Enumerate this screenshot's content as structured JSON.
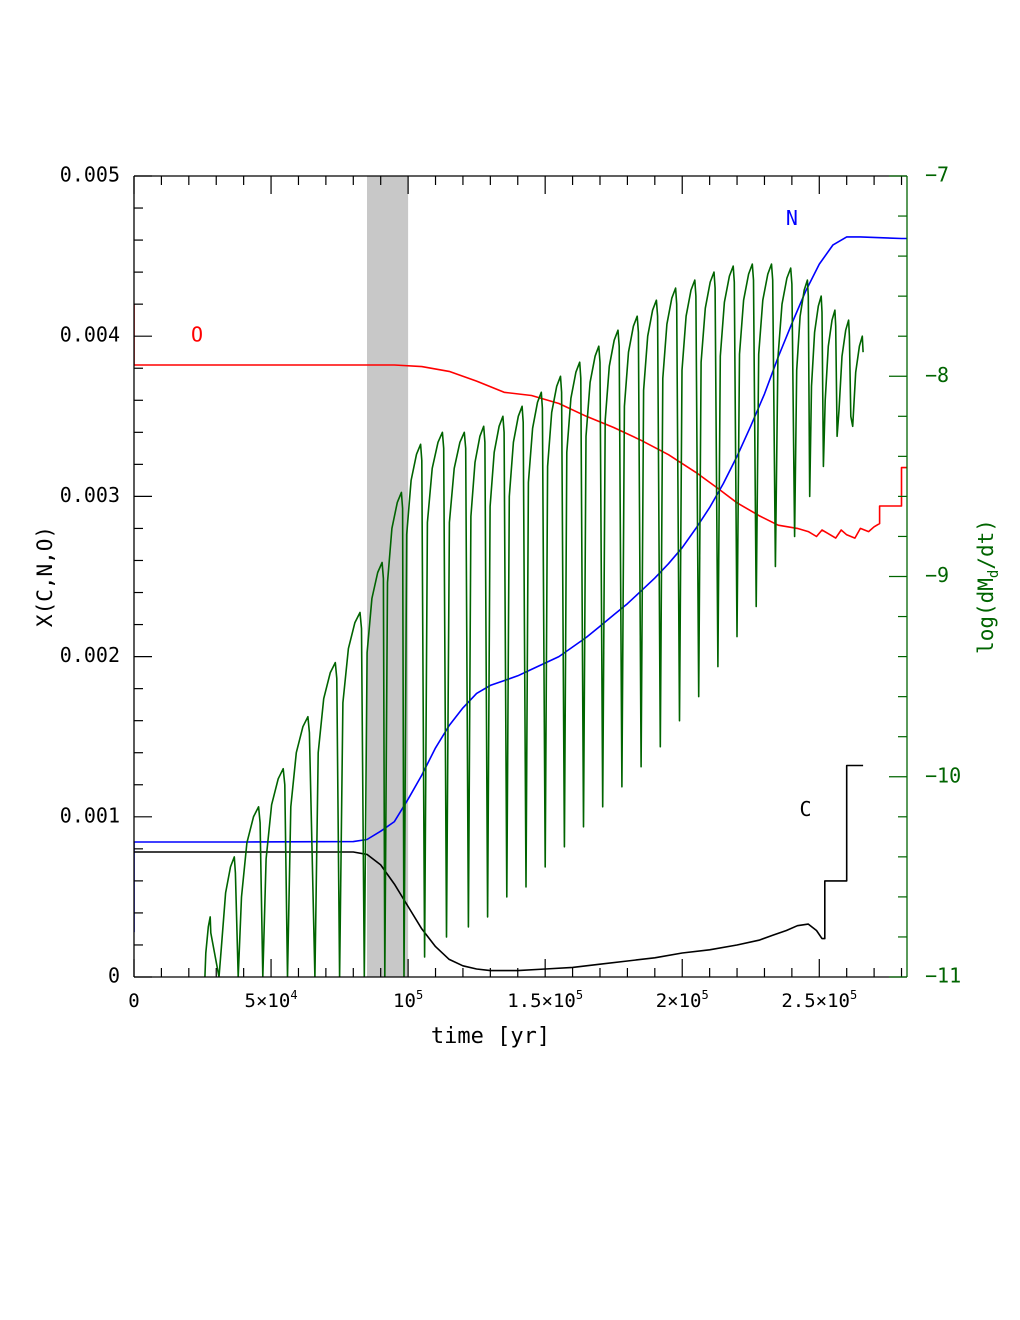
{
  "chart_data": {
    "type": "line",
    "xlabel": "time [yr]",
    "ylabel_left": "X(C,N,O)",
    "ylabel_right_parts": {
      "pre": "log(dM",
      "sub": "d",
      "post": "/dt)"
    },
    "xlim": [
      0,
      282000
    ],
    "ylim_left": [
      0,
      0.005
    ],
    "ylim_right": [
      -11,
      -7
    ],
    "x_ticks": [
      {
        "value": 0,
        "mant": "0",
        "exp": ""
      },
      {
        "value": 50000,
        "mant": "5×10",
        "exp": "4"
      },
      {
        "value": 100000,
        "mant": "10",
        "exp": "5"
      },
      {
        "value": 150000,
        "mant": "1.5×10",
        "exp": "5"
      },
      {
        "value": 200000,
        "mant": "2×10",
        "exp": "5"
      },
      {
        "value": 250000,
        "mant": "2.5×10",
        "exp": "5"
      }
    ],
    "y_ticks_left": [
      {
        "value": 0,
        "label": "0"
      },
      {
        "value": 0.001,
        "label": "0.001"
      },
      {
        "value": 0.002,
        "label": "0.002"
      },
      {
        "value": 0.003,
        "label": "0.003"
      },
      {
        "value": 0.004,
        "label": "0.004"
      },
      {
        "value": 0.005,
        "label": "0.005"
      }
    ],
    "y_ticks_right": [
      {
        "value": -11,
        "label": "−11"
      },
      {
        "value": -10,
        "label": "−10"
      },
      {
        "value": -9,
        "label": "−9"
      },
      {
        "value": -8,
        "label": "−8"
      },
      {
        "value": -7,
        "label": "−7"
      }
    ],
    "shaded_band": {
      "x": [
        85000,
        100000
      ],
      "color": "#c8c8c8"
    },
    "grid": false,
    "series": [
      {
        "name": "O",
        "axis": "left",
        "color": "#ff0000",
        "label_at": {
          "x": 23000,
          "y": 0.004
        },
        "points": [
          [
            0,
            0.0042
          ],
          [
            0,
            0.00382
          ],
          [
            40000,
            0.00382
          ],
          [
            80000,
            0.00382
          ],
          [
            95000,
            0.00382
          ],
          [
            105000,
            0.00381
          ],
          [
            115000,
            0.00378
          ],
          [
            125000,
            0.00372
          ],
          [
            135000,
            0.00365
          ],
          [
            145000,
            0.00363
          ],
          [
            155000,
            0.00358
          ],
          [
            165000,
            0.0035
          ],
          [
            175000,
            0.00343
          ],
          [
            185000,
            0.00335
          ],
          [
            195000,
            0.00326
          ],
          [
            205000,
            0.00315
          ],
          [
            213000,
            0.00305
          ],
          [
            220000,
            0.00296
          ],
          [
            228000,
            0.00288
          ],
          [
            235000,
            0.00282
          ],
          [
            242000,
            0.0028
          ],
          [
            246000,
            0.00278
          ],
          [
            249000,
            0.00275
          ],
          [
            251000,
            0.00279
          ],
          [
            253000,
            0.00277
          ],
          [
            256000,
            0.00274
          ],
          [
            258000,
            0.00279
          ],
          [
            260000,
            0.00276
          ],
          [
            263000,
            0.00274
          ],
          [
            265000,
            0.0028
          ],
          [
            268000,
            0.00278
          ],
          [
            270000,
            0.00281
          ],
          [
            272000,
            0.00283
          ],
          [
            272000,
            0.00294
          ],
          [
            280000,
            0.00294
          ],
          [
            280000,
            0.00318
          ],
          [
            285000,
            0.00318
          ]
        ]
      },
      {
        "name": "N",
        "axis": "left",
        "color": "#0000ff",
        "label_at": {
          "x": 240000,
          "y": 0.00473
        },
        "points": [
          [
            0,
            0.00028
          ],
          [
            0,
            0.000843
          ],
          [
            40000,
            0.000843
          ],
          [
            80000,
            0.000845
          ],
          [
            85000,
            0.000858
          ],
          [
            90000,
            0.00091
          ],
          [
            95000,
            0.00097
          ],
          [
            100000,
            0.00111
          ],
          [
            105000,
            0.00126
          ],
          [
            110000,
            0.00143
          ],
          [
            115000,
            0.00157
          ],
          [
            120000,
            0.00168
          ],
          [
            125000,
            0.00177
          ],
          [
            130000,
            0.00182
          ],
          [
            135000,
            0.00185
          ],
          [
            140000,
            0.00188
          ],
          [
            145000,
            0.00192
          ],
          [
            150000,
            0.00196
          ],
          [
            155000,
            0.002
          ],
          [
            160000,
            0.00206
          ],
          [
            165000,
            0.00212
          ],
          [
            170000,
            0.00219
          ],
          [
            175000,
            0.00226
          ],
          [
            180000,
            0.00233
          ],
          [
            185000,
            0.00241
          ],
          [
            190000,
            0.00249
          ],
          [
            195000,
            0.00258
          ],
          [
            200000,
            0.00268
          ],
          [
            205000,
            0.0028
          ],
          [
            210000,
            0.00293
          ],
          [
            215000,
            0.00308
          ],
          [
            220000,
            0.00325
          ],
          [
            225000,
            0.00344
          ],
          [
            230000,
            0.00364
          ],
          [
            235000,
            0.00387
          ],
          [
            240000,
            0.00408
          ],
          [
            245000,
            0.00428
          ],
          [
            250000,
            0.00445
          ],
          [
            255000,
            0.00457
          ],
          [
            260000,
            0.00462
          ],
          [
            265000,
            0.00462
          ],
          [
            280000,
            0.00461
          ],
          [
            285000,
            0.00461
          ]
        ]
      },
      {
        "name": "C",
        "axis": "left",
        "color": "#000000",
        "label_at": {
          "x": 245000,
          "y": 0.00104
        },
        "points": [
          [
            0,
            0.00078
          ],
          [
            40000,
            0.00078
          ],
          [
            80000,
            0.00078
          ],
          [
            85000,
            0.000765
          ],
          [
            90000,
            0.0007
          ],
          [
            95000,
            0.00058
          ],
          [
            100000,
            0.00044
          ],
          [
            105000,
            0.0003
          ],
          [
            110000,
            0.00019
          ],
          [
            115000,
            0.00011
          ],
          [
            120000,
            7e-05
          ],
          [
            125000,
            5e-05
          ],
          [
            130000,
            4e-05
          ],
          [
            140000,
            4e-05
          ],
          [
            150000,
            5e-05
          ],
          [
            160000,
            6e-05
          ],
          [
            170000,
            8e-05
          ],
          [
            180000,
            0.0001
          ],
          [
            190000,
            0.00012
          ],
          [
            200000,
            0.00015
          ],
          [
            210000,
            0.00017
          ],
          [
            220000,
            0.0002
          ],
          [
            228000,
            0.00023
          ],
          [
            233000,
            0.00026
          ],
          [
            238000,
            0.00029
          ],
          [
            242000,
            0.00032
          ],
          [
            246000,
            0.00033
          ],
          [
            249000,
            0.00029
          ],
          [
            251000,
            0.00024
          ],
          [
            252000,
            0.00024
          ],
          [
            252000,
            0.0006
          ],
          [
            260000,
            0.0006
          ],
          [
            260000,
            0.00132
          ],
          [
            266000,
            0.00132
          ]
        ]
      },
      {
        "name": "",
        "axis": "right",
        "color": "#006400",
        "generator": "pulses",
        "pulses": [
          {
            "x0": 25000,
            "x1": 28000,
            "peak": -10.7
          },
          {
            "x0": 31000,
            "x1": 37000,
            "peak": -10.4
          },
          {
            "x0": 38000,
            "x1": 46000,
            "peak": -10.15
          },
          {
            "x0": 47000,
            "x1": 55000,
            "peak": -9.96
          },
          {
            "x0": 56000,
            "x1": 64000,
            "peak": -9.7
          },
          {
            "x0": 66000,
            "x1": 74000,
            "peak": -9.43
          },
          {
            "x0": 75000,
            "x1": 83000,
            "peak": -9.18
          },
          {
            "x0": 84000,
            "x1": 91000,
            "peak": -8.93
          },
          {
            "x0": 91500,
            "x1": 98000,
            "peak": -8.58
          },
          {
            "x0": 98500,
            "x1": 105000,
            "peak": -8.34
          },
          {
            "x0": 106000,
            "x1": 113000,
            "peak": -8.28
          },
          {
            "x0": 114000,
            "x1": 121000,
            "peak": -8.28
          },
          {
            "x0": 122000,
            "x1": 128000,
            "peak": -8.25
          },
          {
            "x0": 129000,
            "x1": 135000,
            "peak": -8.2
          },
          {
            "x0": 136000,
            "x1": 142000,
            "peak": -8.15
          },
          {
            "x0": 143000,
            "x1": 149000,
            "peak": -8.08
          },
          {
            "x0": 150000,
            "x1": 156000,
            "peak": -8.0
          },
          {
            "x0": 157000,
            "x1": 163000,
            "peak": -7.93
          },
          {
            "x0": 164000,
            "x1": 170000,
            "peak": -7.85
          },
          {
            "x0": 171000,
            "x1": 177000,
            "peak": -7.77
          },
          {
            "x0": 178000,
            "x1": 184000,
            "peak": -7.7
          },
          {
            "x0": 185000,
            "x1": 191000,
            "peak": -7.62
          },
          {
            "x0": 192000,
            "x1": 198000,
            "peak": -7.56
          },
          {
            "x0": 199000,
            "x1": 205000,
            "peak": -7.52
          },
          {
            "x0": 206000,
            "x1": 212000,
            "peak": -7.48
          },
          {
            "x0": 213000,
            "x1": 219000,
            "peak": -7.45
          },
          {
            "x0": 220000,
            "x1": 226000,
            "peak": -7.44
          },
          {
            "x0": 227000,
            "x1": 233000,
            "peak": -7.44
          },
          {
            "x0": 234000,
            "x1": 240000,
            "peak": -7.46
          },
          {
            "x0": 241000,
            "x1": 246000,
            "peak": -7.52
          },
          {
            "x0": 246500,
            "x1": 251000,
            "peak": -7.6
          },
          {
            "x0": 251500,
            "x1": 256000,
            "peak": -7.67
          },
          {
            "x0": 256500,
            "x1": 261000,
            "peak": -7.72
          },
          {
            "x0": 261500,
            "x1": 266000,
            "peak": -7.8
          },
          {
            "x0": 266500,
            "x1": 270000,
            "peak": -7.9
          }
        ],
        "dips": [
          -11,
          -11,
          -11,
          -11,
          -11,
          -11,
          -11,
          -11,
          -11,
          -11,
          -10.9,
          -10.8,
          -10.75,
          -10.7,
          -10.6,
          -10.55,
          -10.45,
          -10.35,
          -10.25,
          -10.15,
          -10.05,
          -9.95,
          -9.85,
          -9.72,
          -9.6,
          -9.45,
          -9.3,
          -9.15,
          -8.95,
          -8.8,
          -8.6,
          -8.45,
          -8.3,
          -8.2
        ],
        "end_value": -7.9
      }
    ]
  }
}
